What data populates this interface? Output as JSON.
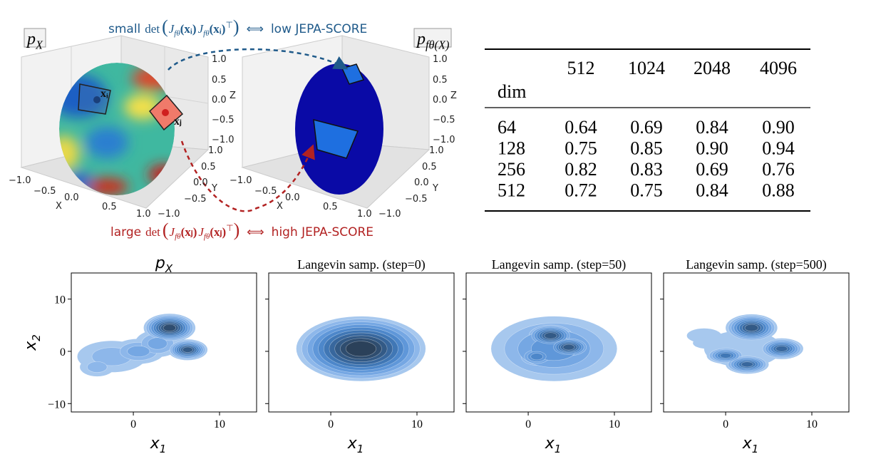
{
  "diagram": {
    "left_label": {
      "base": "p",
      "sub": "X"
    },
    "right_label": {
      "base": "p",
      "sub": "fθ(X)"
    },
    "point_i": "xᵢ",
    "point_j": "xⱼ",
    "axes": {
      "x_label": "X",
      "y_label": "Y",
      "z_label": "Z",
      "ticks": [
        "−1.0",
        "−0.5",
        "0.0",
        "0.5",
        "1.0"
      ]
    },
    "top_note": {
      "prefix": "small",
      "det": "det",
      "open": "(",
      "jac": "J",
      "jac_sub": "fθ",
      "arg": "(xᵢ)",
      "transpose": "⊤",
      "close": ")",
      "arrow": "⟺",
      "suffix": "low JEPA-SCORE"
    },
    "bottom_note": {
      "prefix": "large",
      "det": "det",
      "open": "(",
      "jac": "J",
      "jac_sub": "fθ",
      "arg": "(xⱼ)",
      "transpose": "⊤",
      "close": ")",
      "arrow": "⟺",
      "suffix": "high JEPA-SCORE"
    }
  },
  "table": {
    "corner": "dim",
    "columns": [
      "512",
      "1024",
      "2048",
      "4096"
    ],
    "rows": [
      [
        "64",
        "0.64",
        "0.69",
        "0.84",
        "0.90"
      ],
      [
        "128",
        "0.75",
        "0.85",
        "0.90",
        "0.94"
      ],
      [
        "256",
        "0.82",
        "0.83",
        "0.69",
        "0.76"
      ],
      [
        "512",
        "0.72",
        "0.75",
        "0.84",
        "0.88"
      ]
    ]
  },
  "plots": {
    "xlim": [
      -7.2,
      14.3
    ],
    "ylim": [
      -11.6,
      15
    ],
    "xticks": [
      0,
      10
    ],
    "yticks": [
      {
        "value": -10,
        "label": "−10"
      },
      0,
      10
    ],
    "x_label": {
      "base": "x",
      "sub": "1"
    },
    "y_label": {
      "base": "x",
      "sub": "2"
    },
    "first_title": {
      "base": "p",
      "sub": "X"
    },
    "titles": [
      "Langevin samp. (step=0)",
      "Langevin samp. (step=50)",
      "Langevin samp. (step=500)"
    ]
  }
}
